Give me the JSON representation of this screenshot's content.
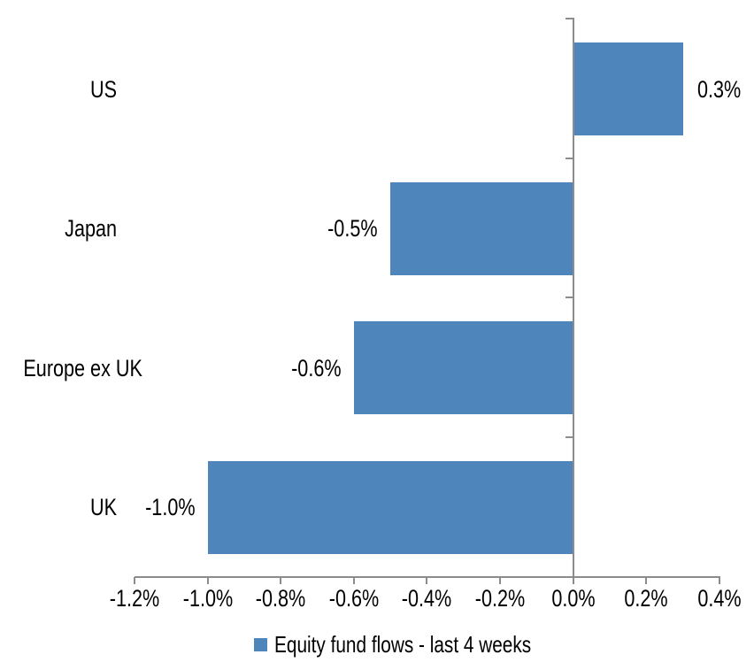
{
  "chart_data": {
    "type": "bar",
    "orientation": "horizontal",
    "title": "",
    "xlabel": "",
    "ylabel": "",
    "categories": [
      "US",
      "Japan",
      "Europe ex UK",
      "UK"
    ],
    "series": [
      {
        "name": "Equity fund flows - last 4 weeks",
        "values": [
          0.3,
          -0.5,
          -0.6,
          -1.0
        ],
        "labels": [
          "0.3%",
          "-0.5%",
          "-0.6%",
          "-1.0%"
        ],
        "color": "#4E86BC"
      }
    ],
    "xlim": [
      -1.2,
      0.4
    ],
    "x_tick_values": [
      -1.2,
      -1.0,
      -0.8,
      -0.6,
      -0.4,
      -0.2,
      0.0,
      0.2,
      0.4
    ],
    "x_tick_labels": [
      "-1.2%",
      "-1.0%",
      "-0.8%",
      "-0.6%",
      "-0.4%",
      "-0.2%",
      "0.0%",
      "0.2%",
      "0.4%"
    ],
    "grid": false,
    "legend_position": "bottom",
    "axis_color": "#8C8C8C",
    "text_color": "#000000",
    "background_color": "#FFFFFF"
  },
  "legend": {
    "marker_color": "#4E86BC",
    "label": "Equity fund flows - last 4 weeks"
  }
}
